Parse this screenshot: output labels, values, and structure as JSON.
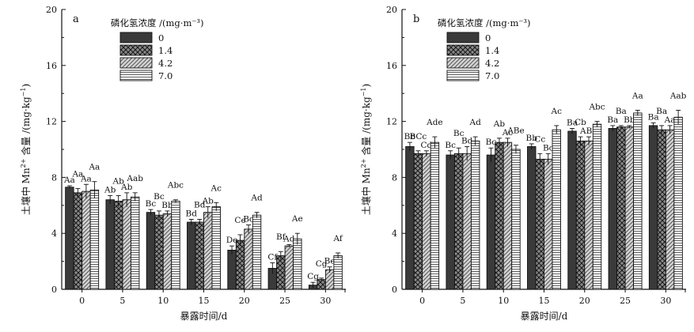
{
  "chart_data": [
    {
      "type": "bar",
      "panel": "a",
      "xlabel": "暴露时间/d",
      "ylabel": "土壤中 Mn²⁺ 含量 /(mg·kg⁻¹)",
      "ylabel_main": "土壤中 Mn",
      "ylabel_sup": "2+",
      "ylabel_rest": " 含量 /(mg·kg",
      "ylabel_sup2": "−1",
      "ylabel_end": ")",
      "ylim": [
        0,
        20
      ],
      "yticks": [
        "0",
        "4",
        "8",
        "12",
        "16",
        "20"
      ],
      "categories": [
        "0",
        "5",
        "10",
        "15",
        "20",
        "25",
        "30"
      ],
      "legend_title": "磷化氢浓度 /(mg·m⁻³)",
      "series": [
        {
          "name": "0",
          "values": [
            7.3,
            6.4,
            5.5,
            4.8,
            2.8,
            1.5,
            0.3
          ],
          "errors": [
            0.1,
            0.3,
            0.2,
            0.2,
            0.3,
            0.4,
            0.2
          ],
          "labels": [
            "Aa",
            "Ab",
            "Bc",
            "Bd",
            "De",
            "Cf",
            "Cg"
          ]
        },
        {
          "name": "1.4",
          "values": [
            6.9,
            6.3,
            5.3,
            4.8,
            3.5,
            2.4,
            0.7
          ],
          "errors": [
            0.3,
            0.4,
            0.3,
            0.2,
            0.4,
            0.3,
            0.1
          ],
          "labels": [
            "Aa",
            "Ab",
            "Bc",
            "Bd",
            "Ce",
            "Bf",
            "Cg"
          ]
        },
        {
          "name": "4.2",
          "values": [
            7.0,
            6.4,
            5.4,
            5.5,
            4.3,
            3.1,
            1.4
          ],
          "errors": [
            0.5,
            0.5,
            0.2,
            0.4,
            0.3,
            0.1,
            0.2
          ],
          "labels": [
            "Aa",
            "Ab",
            "Bb",
            "Ab",
            "Bc",
            "Ad",
            "Be"
          ]
        },
        {
          "name": "7.0",
          "values": [
            7.1,
            6.6,
            6.3,
            5.9,
            5.3,
            3.6,
            2.4
          ],
          "errors": [
            0.6,
            0.3,
            0.1,
            0.3,
            0.2,
            0.4,
            0.2
          ],
          "labels": [
            "Aa",
            "Aab",
            "Abc",
            "Ac",
            "Ad",
            "Ae",
            "Af"
          ]
        }
      ]
    },
    {
      "type": "bar",
      "panel": "b",
      "xlabel": "暴露时间/d",
      "ylabel": "土壤中 Mn²⁺ 含量 /(mg·kg⁻¹)",
      "ylabel_main": "土壤中 Mn",
      "ylabel_sup": "2+",
      "ylabel_rest": " 含量 /(mg·kg",
      "ylabel_sup2": "−1",
      "ylabel_end": ")",
      "ylim": [
        0,
        20
      ],
      "yticks": [
        "0",
        "4",
        "8",
        "12",
        "16",
        "20"
      ],
      "categories": [
        "0",
        "5",
        "10",
        "15",
        "20",
        "25",
        "30"
      ],
      "legend_title": "磷化氢浓度 /(mg·m⁻³)",
      "series": [
        {
          "name": "0",
          "values": [
            10.2,
            9.6,
            9.6,
            10.2,
            11.3,
            11.5,
            11.7
          ],
          "errors": [
            0.3,
            0.3,
            0.5,
            0.2,
            0.2,
            0.2,
            0.2
          ],
          "labels": [
            "Bb",
            "Bc",
            "Bc",
            "Bb",
            "Ba",
            "Ba",
            "Ba"
          ]
        },
        {
          "name": "1.4",
          "values": [
            9.7,
            9.7,
            10.5,
            9.3,
            10.6,
            11.6,
            11.4
          ],
          "errors": [
            0.2,
            0.4,
            0.3,
            0.4,
            0.3,
            0.1,
            0.3
          ],
          "labels": [
            "BCc",
            "Bc",
            "Ab",
            "Cc",
            "Cb",
            "Ba",
            "Ba"
          ]
        },
        {
          "name": "4.2",
          "values": [
            9.7,
            9.7,
            10.5,
            9.3,
            10.6,
            11.6,
            11.4
          ],
          "errors": [
            0.2,
            0.5,
            0.3,
            0.4,
            0.3,
            0.1,
            0.3
          ],
          "labels": [
            "Cd",
            "Bd",
            "Ac",
            "Bc",
            "ABb",
            "Bb",
            "Aa"
          ]
        },
        {
          "name": "7.0",
          "values": [
            10.5,
            10.6,
            10.0,
            11.4,
            11.8,
            12.6,
            12.3
          ],
          "errors": [
            0.4,
            0.3,
            0.3,
            0.3,
            0.2,
            0.2,
            0.5
          ],
          "labels": [
            "Ade",
            "Ad",
            "ABe",
            "Ac",
            "Abc",
            "Aa",
            "Aab"
          ]
        }
      ]
    }
  ]
}
